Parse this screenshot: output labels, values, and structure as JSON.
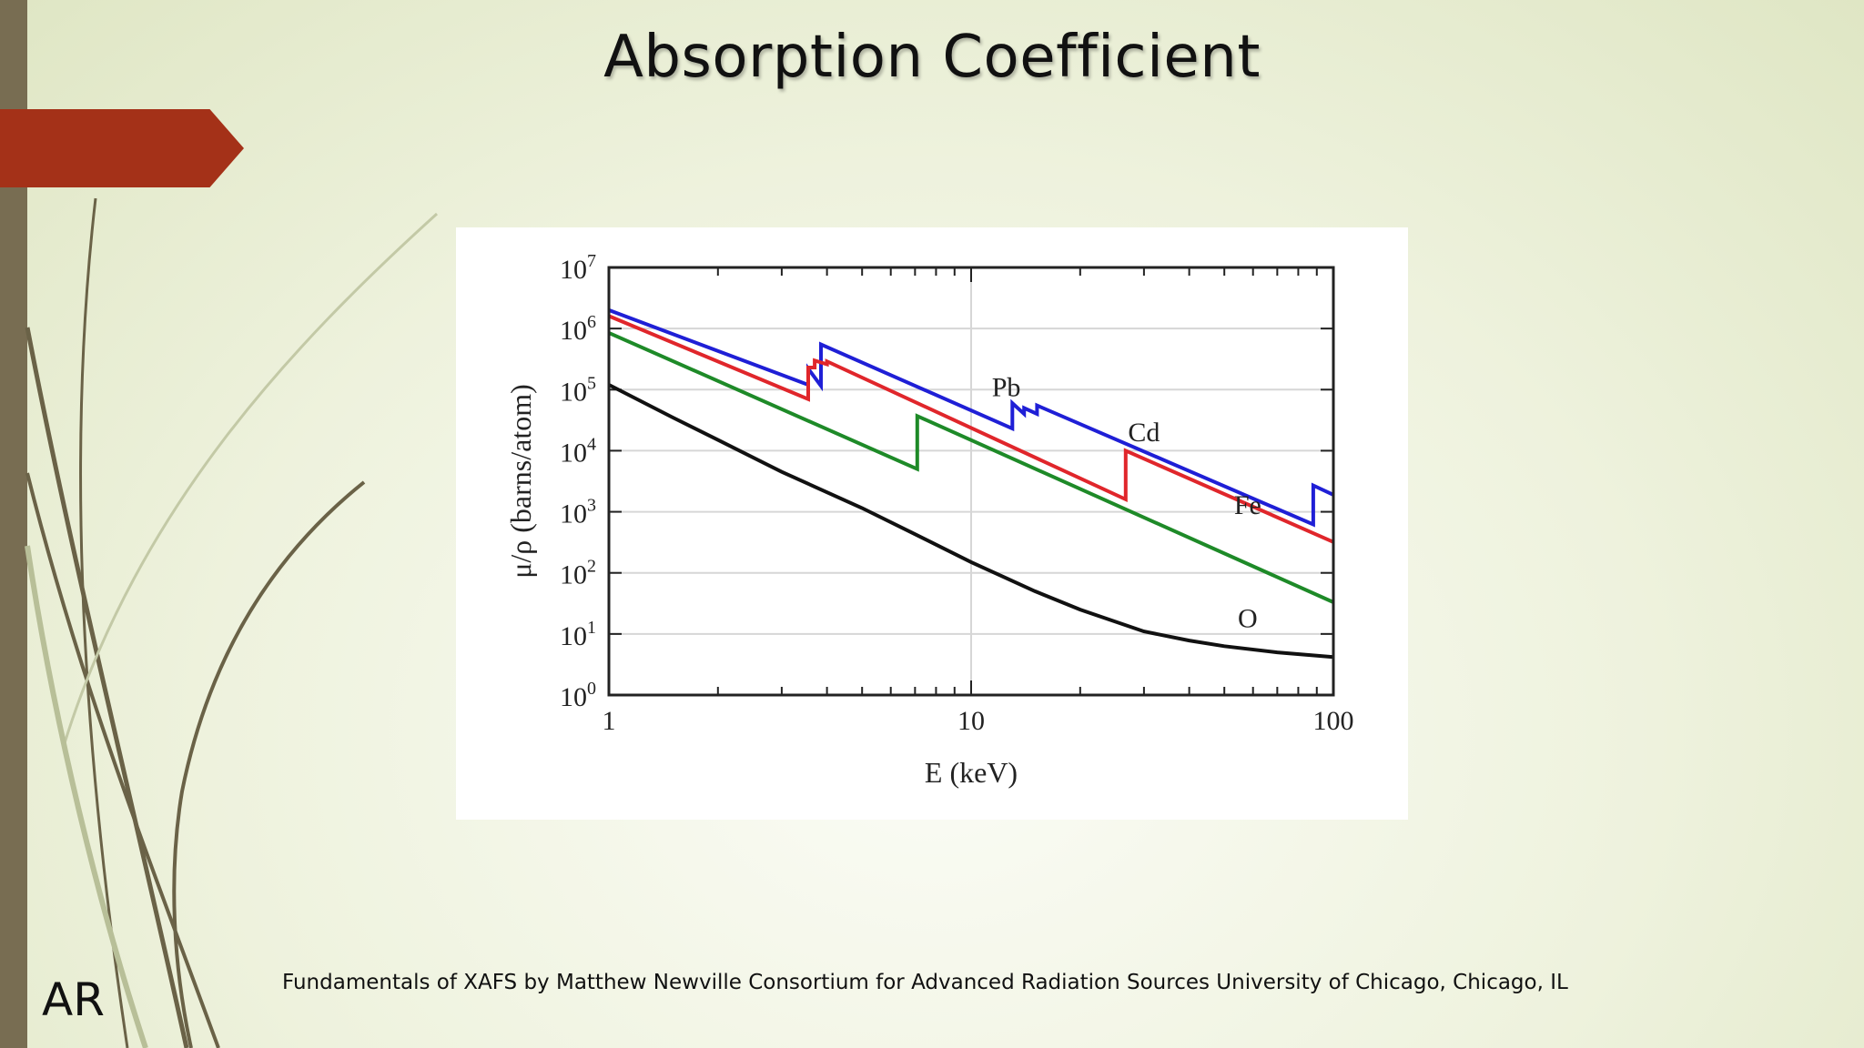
{
  "slide": {
    "title": "Absorption Coefficient",
    "citation": "Fundamentals of XAFS by Matthew Newville Consortium for Advanced Radiation Sources University of Chicago, Chicago, IL",
    "initials": "AR",
    "accent_color": "#a43118",
    "sidebar_color": "#786d52"
  },
  "chart_data": {
    "type": "line",
    "title": "",
    "xlabel": "E (keV)",
    "ylabel": "μ/ρ (barns/atom)",
    "x_scale": "log",
    "y_scale": "log",
    "xlim": [
      1,
      100
    ],
    "ylim": [
      1,
      10000000
    ],
    "x_ticks": [
      {
        "value": 1,
        "label": "1"
      },
      {
        "value": 10,
        "label": "10"
      },
      {
        "value": 100,
        "label": "100"
      }
    ],
    "y_ticks": [
      {
        "value": 1,
        "base": "10",
        "exp": "0"
      },
      {
        "value": 10,
        "base": "10",
        "exp": "1"
      },
      {
        "value": 100,
        "base": "10",
        "exp": "2"
      },
      {
        "value": 1000,
        "base": "10",
        "exp": "3"
      },
      {
        "value": 10000,
        "base": "10",
        "exp": "4"
      },
      {
        "value": 100000,
        "base": "10",
        "exp": "5"
      },
      {
        "value": 1000000,
        "base": "10",
        "exp": "6"
      },
      {
        "value": 10000000,
        "base": "10",
        "exp": "7"
      }
    ],
    "grid": "horizontal lines at each decade, vertical line at 10",
    "legend": "none",
    "series": [
      {
        "name": "Pb",
        "color": "#1f1fd6",
        "label_at": [
          12.5,
          110000
        ],
        "points": [
          [
            1,
            2000000
          ],
          [
            3.55,
            120000
          ],
          [
            3.55,
            220000
          ],
          [
            3.85,
            115000
          ],
          [
            3.85,
            550000
          ],
          [
            13.0,
            23000
          ],
          [
            13.0,
            60000
          ],
          [
            14.0,
            40000
          ],
          [
            14.0,
            50000
          ],
          [
            15.2,
            40000
          ],
          [
            15.2,
            55000
          ],
          [
            88,
            620
          ],
          [
            88,
            2700
          ],
          [
            100,
            1900
          ]
        ]
      },
      {
        "name": "Cd",
        "color": "#e0262b",
        "label_at": [
          30,
          20000
        ],
        "points": [
          [
            1,
            1600000
          ],
          [
            3.55,
            70000
          ],
          [
            3.55,
            230000
          ],
          [
            3.7,
            230000
          ],
          [
            3.7,
            300000
          ],
          [
            4.0,
            260000
          ],
          [
            4.0,
            290000
          ],
          [
            26.7,
            1600
          ],
          [
            26.7,
            10000
          ],
          [
            100,
            320
          ]
        ]
      },
      {
        "name": "Fe",
        "color": "#1e8a28",
        "label_at": [
          58,
          1300
        ],
        "points": [
          [
            1,
            850000
          ],
          [
            7.1,
            5000
          ],
          [
            7.1,
            37000
          ],
          [
            100,
            33
          ]
        ]
      },
      {
        "name": "O",
        "color": "#111111",
        "label_at": [
          58,
          18
        ],
        "points": [
          [
            1,
            120000
          ],
          [
            1.5,
            35000
          ],
          [
            2,
            15000
          ],
          [
            3,
            4500
          ],
          [
            5,
            1150
          ],
          [
            7,
            430
          ],
          [
            10,
            150
          ],
          [
            15,
            50
          ],
          [
            20,
            25
          ],
          [
            30,
            11
          ],
          [
            40,
            7.8
          ],
          [
            50,
            6.3
          ],
          [
            70,
            5.0
          ],
          [
            100,
            4.2
          ]
        ]
      }
    ]
  }
}
